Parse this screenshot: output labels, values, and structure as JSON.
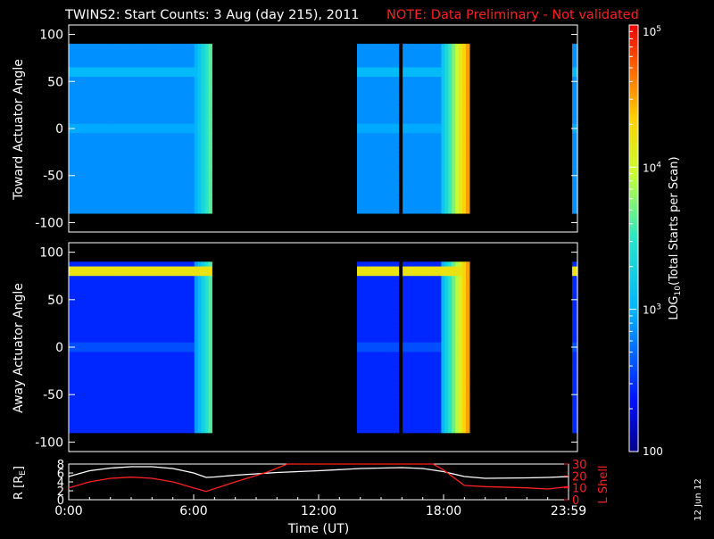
{
  "header": {
    "title": "TWINS2: Start Counts:  3 Aug (day 215), 2011",
    "note": "NOTE: Data Preliminary - Not validated"
  },
  "stamp": "12 Jun 12",
  "chart_data": [
    {
      "type": "heatmap",
      "ylabel": "Toward Actuator Angle",
      "ylim": [
        -110,
        110
      ],
      "yticks": [
        100,
        50,
        0,
        -50,
        -100
      ],
      "angle_range": [
        -90,
        90
      ],
      "x_unit": "hours UT",
      "data_segments": [
        [
          0.0,
          6.75
        ],
        [
          13.6,
          18.9
        ],
        [
          23.75,
          24.0
        ]
      ],
      "gaps": [
        [
          15.65,
          15.75
        ]
      ],
      "base_log_counts": 2.85,
      "bands": [
        {
          "angle": 60,
          "log_counts": 3.05
        },
        {
          "angle": 0,
          "log_counts": 2.95
        }
      ],
      "edge_ramps": [
        {
          "start": 6.0,
          "end": 6.75,
          "from": 3.0,
          "to": 3.7
        },
        {
          "start": 17.6,
          "end": 18.9,
          "from": 3.1,
          "to": 4.6
        }
      ]
    },
    {
      "type": "heatmap",
      "ylabel": "Away Actuator Angle",
      "ylim": [
        -110,
        110
      ],
      "yticks": [
        100,
        50,
        0,
        -50,
        -100
      ],
      "angle_range": [
        -90,
        90
      ],
      "x_unit": "hours UT",
      "data_segments": [
        [
          0.0,
          6.75
        ],
        [
          13.6,
          18.9
        ],
        [
          23.75,
          24.0
        ]
      ],
      "gaps": [
        [
          15.65,
          15.75
        ]
      ],
      "base_log_counts": 2.45,
      "bands": [
        {
          "angle": 80,
          "log_counts": 4.2
        },
        {
          "angle": 0,
          "log_counts": 2.6
        }
      ],
      "edge_ramps": [
        {
          "start": 6.0,
          "end": 6.75,
          "from": 2.9,
          "to": 3.7
        },
        {
          "start": 17.6,
          "end": 18.9,
          "from": 3.0,
          "to": 4.6
        }
      ]
    },
    {
      "type": "line",
      "ylabel": "R [R",
      "ylabel_sub": "E",
      "ylabel_end": "]",
      "ylim": [
        0,
        8
      ],
      "yticks": [
        0,
        2,
        4,
        6,
        8
      ],
      "y2label": "L Shell",
      "y2lim": [
        0,
        30
      ],
      "y2ticks": [
        0,
        10,
        20,
        30
      ],
      "xlabel": "Time (UT)",
      "xlim": [
        0,
        24
      ],
      "xticks": [
        {
          "v": 0,
          "label": "0:00"
        },
        {
          "v": 6,
          "label": "6:00"
        },
        {
          "v": 12,
          "label": "12:00"
        },
        {
          "v": 18,
          "label": "18:00"
        },
        {
          "v": 24,
          "label": "23:59"
        }
      ],
      "series": [
        {
          "axis": "left",
          "color": "#ffffff",
          "x": [
            0,
            1,
            2,
            3,
            4,
            5,
            6,
            6.6,
            7,
            8,
            10,
            12,
            14,
            16,
            17,
            18,
            19,
            20,
            22,
            23,
            24
          ],
          "y": [
            5.2,
            6.5,
            7.1,
            7.4,
            7.4,
            7.0,
            6.0,
            5.0,
            5.1,
            5.5,
            6.1,
            6.5,
            7.0,
            7.2,
            7.0,
            6.3,
            5.2,
            4.8,
            4.9,
            5.0,
            5.2
          ]
        },
        {
          "axis": "right",
          "color": "#ff2020",
          "x": [
            0,
            1,
            2,
            3,
            4,
            5,
            6,
            6.6,
            8,
            9.5,
            10.5,
            17.5,
            18.0,
            19,
            20,
            22,
            23,
            24
          ],
          "y": [
            10,
            15,
            18,
            19,
            18,
            15,
            10,
            7,
            15,
            23,
            30,
            30,
            25,
            12,
            11,
            10,
            9,
            11
          ]
        }
      ]
    }
  ],
  "colorbar": {
    "label_prefix": "LOG",
    "label_sub": "10",
    "label_suffix": "(Total Starts per Scan)",
    "scale": "log",
    "range": [
      100,
      100000
    ],
    "tick_labels": [
      {
        "log": 2,
        "text": "100"
      },
      {
        "log": 3,
        "base": "10",
        "exp": "3"
      },
      {
        "log": 4,
        "base": "10",
        "exp": "4"
      },
      {
        "log": 5,
        "base": "10",
        "exp": "5"
      }
    ]
  }
}
